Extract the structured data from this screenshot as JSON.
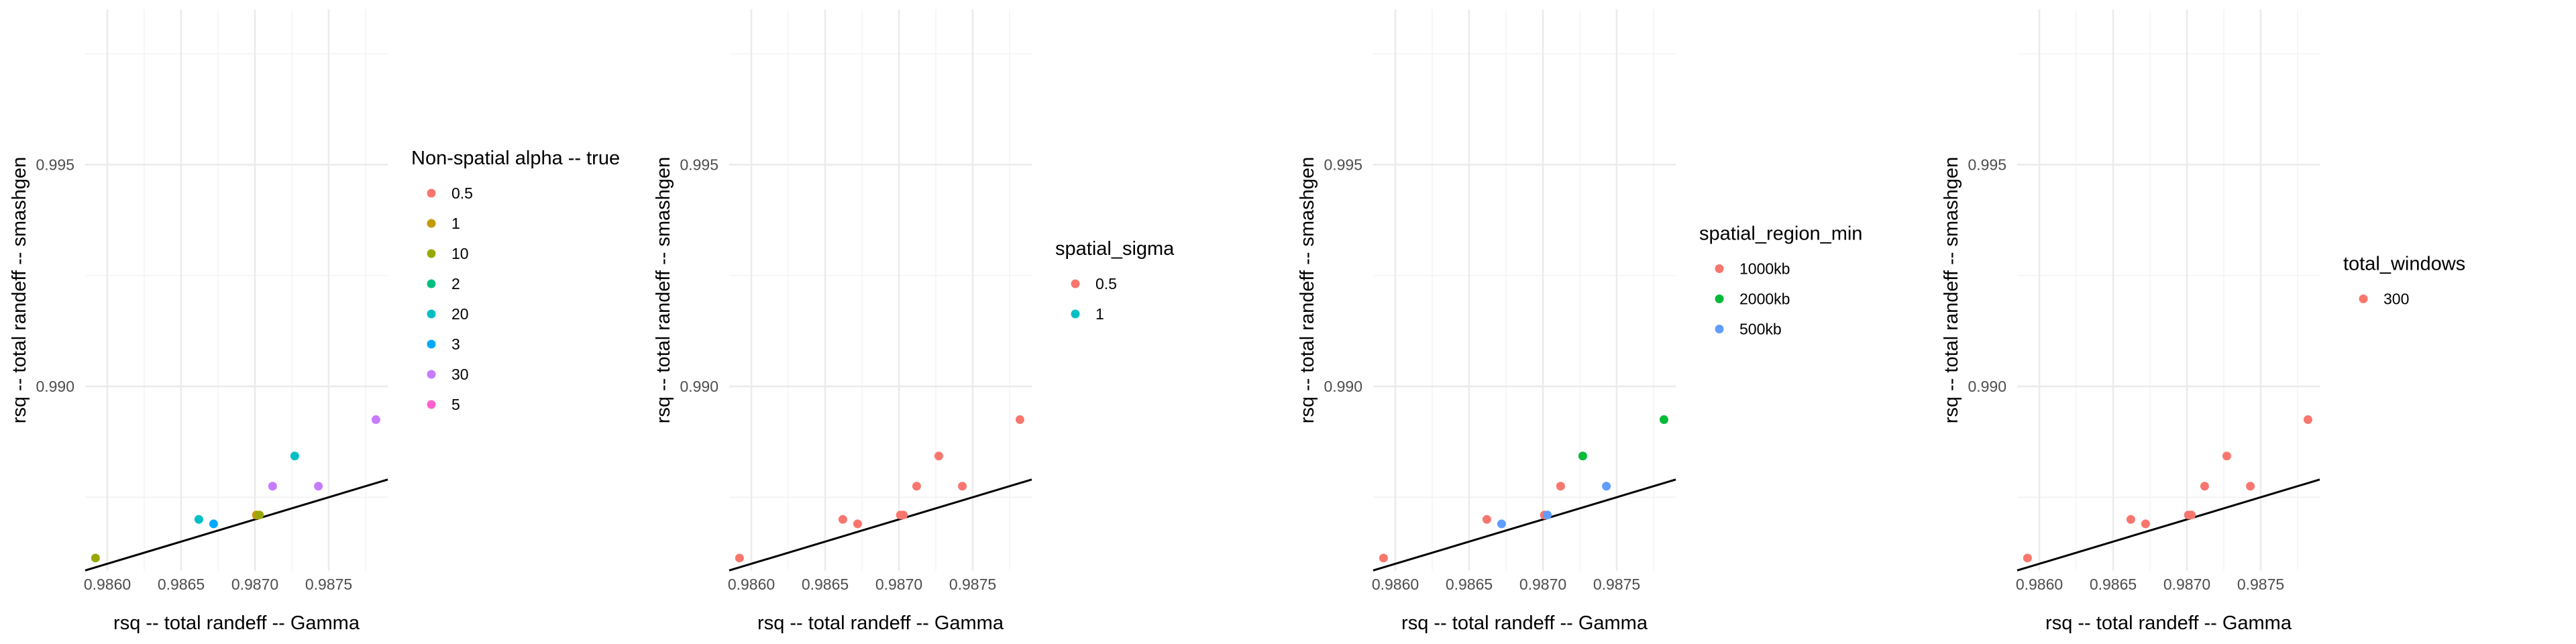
{
  "chart_data": [
    {
      "type": "scatter",
      "xlabel": "rsq -- total randeff -- Gamma",
      "ylabel": "rsq -- total randeff -- smashgen",
      "x_ticks": [
        "0.9860",
        "0.9865",
        "0.9870",
        "0.9875"
      ],
      "y_ticks": [
        "0.990",
        "0.995"
      ],
      "xlim": [
        0.98585,
        0.9879
      ],
      "ylim": [
        0.98584,
        0.9985
      ],
      "grid": true,
      "reference_line": "y = x",
      "legend": {
        "title": "Non-spatial alpha -- true",
        "position": "right",
        "entries": [
          {
            "label": "0.5",
            "color": "#F8766D"
          },
          {
            "label": "1",
            "color": "#C49A00"
          },
          {
            "label": "10",
            "color": "#99A800"
          },
          {
            "label": "2",
            "color": "#00BF7D"
          },
          {
            "label": "20",
            "color": "#00BFC4"
          },
          {
            "label": "3",
            "color": "#00A9FF"
          },
          {
            "label": "30",
            "color": "#C77CFF"
          },
          {
            "label": "5",
            "color": "#FF61CC"
          }
        ]
      },
      "points": [
        {
          "x": 0.98592,
          "y": 0.98613,
          "group": "10"
        },
        {
          "x": 0.98662,
          "y": 0.987,
          "group": "20"
        },
        {
          "x": 0.98672,
          "y": 0.9869,
          "group": "3"
        },
        {
          "x": 0.98701,
          "y": 0.9871,
          "group": "1"
        },
        {
          "x": 0.98703,
          "y": 0.9871,
          "group": "10"
        },
        {
          "x": 0.98712,
          "y": 0.98775,
          "group": "30"
        },
        {
          "x": 0.98727,
          "y": 0.98843,
          "group": "20"
        },
        {
          "x": 0.98743,
          "y": 0.98775,
          "group": "30"
        },
        {
          "x": 0.98782,
          "y": 0.98925,
          "group": "30"
        }
      ]
    },
    {
      "type": "scatter",
      "xlabel": "rsq -- total randeff -- Gamma",
      "ylabel": "rsq -- total randeff -- smashgen",
      "x_ticks": [
        "0.9860",
        "0.9865",
        "0.9870",
        "0.9875"
      ],
      "y_ticks": [
        "0.990",
        "0.995"
      ],
      "xlim": [
        0.98585,
        0.9879
      ],
      "ylim": [
        0.98584,
        0.9985
      ],
      "grid": true,
      "reference_line": "y = x",
      "legend": {
        "title": "spatial_sigma",
        "position": "right",
        "entries": [
          {
            "label": "0.5",
            "color": "#F8766D"
          },
          {
            "label": "1",
            "color": "#00BFC4"
          }
        ]
      },
      "points": [
        {
          "x": 0.98592,
          "y": 0.98613,
          "group": "0.5"
        },
        {
          "x": 0.98662,
          "y": 0.987,
          "group": "0.5"
        },
        {
          "x": 0.98672,
          "y": 0.9869,
          "group": "0.5"
        },
        {
          "x": 0.98701,
          "y": 0.9871,
          "group": "0.5"
        },
        {
          "x": 0.98703,
          "y": 0.9871,
          "group": "0.5"
        },
        {
          "x": 0.98712,
          "y": 0.98775,
          "group": "0.5"
        },
        {
          "x": 0.98727,
          "y": 0.98843,
          "group": "0.5"
        },
        {
          "x": 0.98743,
          "y": 0.98775,
          "group": "0.5"
        },
        {
          "x": 0.98782,
          "y": 0.98925,
          "group": "0.5"
        }
      ]
    },
    {
      "type": "scatter",
      "xlabel": "rsq -- total randeff -- Gamma",
      "ylabel": "rsq -- total randeff -- smashgen",
      "x_ticks": [
        "0.9860",
        "0.9865",
        "0.9870",
        "0.9875"
      ],
      "y_ticks": [
        "0.990",
        "0.995"
      ],
      "xlim": [
        0.98585,
        0.9879
      ],
      "ylim": [
        0.98584,
        0.9985
      ],
      "grid": true,
      "reference_line": "y = x",
      "legend": {
        "title": "spatial_region_min",
        "position": "right",
        "entries": [
          {
            "label": "1000kb",
            "color": "#F8766D"
          },
          {
            "label": "2000kb",
            "color": "#00BA38"
          },
          {
            "label": "500kb",
            "color": "#619CFF"
          }
        ]
      },
      "points": [
        {
          "x": 0.98592,
          "y": 0.98613,
          "group": "1000kb"
        },
        {
          "x": 0.98662,
          "y": 0.987,
          "group": "1000kb"
        },
        {
          "x": 0.98672,
          "y": 0.9869,
          "group": "500kb"
        },
        {
          "x": 0.98701,
          "y": 0.9871,
          "group": "1000kb"
        },
        {
          "x": 0.98703,
          "y": 0.9871,
          "group": "500kb"
        },
        {
          "x": 0.98712,
          "y": 0.98775,
          "group": "1000kb"
        },
        {
          "x": 0.98727,
          "y": 0.98843,
          "group": "2000kb"
        },
        {
          "x": 0.98743,
          "y": 0.98775,
          "group": "500kb"
        },
        {
          "x": 0.98782,
          "y": 0.98925,
          "group": "2000kb"
        }
      ]
    },
    {
      "type": "scatter",
      "xlabel": "rsq -- total randeff -- Gamma",
      "ylabel": "rsq -- total randeff -- smashgen",
      "x_ticks": [
        "0.9860",
        "0.9865",
        "0.9870",
        "0.9875"
      ],
      "y_ticks": [
        "0.990",
        "0.995"
      ],
      "xlim": [
        0.98585,
        0.9879
      ],
      "ylim": [
        0.98584,
        0.9985
      ],
      "grid": true,
      "reference_line": "y = x",
      "legend": {
        "title": "total_windows",
        "position": "right",
        "entries": [
          {
            "label": "300",
            "color": "#F8766D"
          }
        ]
      },
      "points": [
        {
          "x": 0.98592,
          "y": 0.98613,
          "group": "300"
        },
        {
          "x": 0.98662,
          "y": 0.987,
          "group": "300"
        },
        {
          "x": 0.98672,
          "y": 0.9869,
          "group": "300"
        },
        {
          "x": 0.98701,
          "y": 0.9871,
          "group": "300"
        },
        {
          "x": 0.98703,
          "y": 0.9871,
          "group": "300"
        },
        {
          "x": 0.98712,
          "y": 0.98775,
          "group": "300"
        },
        {
          "x": 0.98727,
          "y": 0.98843,
          "group": "300"
        },
        {
          "x": 0.98743,
          "y": 0.98775,
          "group": "300"
        },
        {
          "x": 0.98782,
          "y": 0.98925,
          "group": "300"
        }
      ]
    }
  ]
}
